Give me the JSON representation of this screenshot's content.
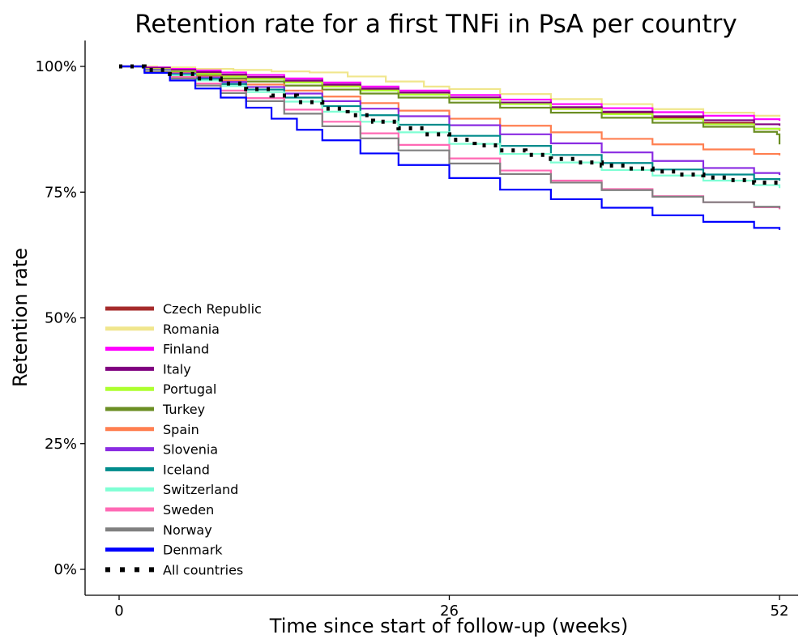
{
  "chart_data": {
    "type": "line",
    "title": "Retention rate for a first TNFi in PsA per country",
    "xlabel": "Time since start of follow-up (weeks)",
    "ylabel": "Retention rate",
    "xlim": [
      0,
      52
    ],
    "ylim": [
      0,
      100
    ],
    "x_ticks": [
      0,
      26,
      52
    ],
    "x_tick_labels": [
      "0",
      "26",
      "52"
    ],
    "y_ticks": [
      0,
      25,
      50,
      75,
      100
    ],
    "y_tick_labels": [
      "0%",
      "25%",
      "50%",
      "75%",
      "100%"
    ],
    "grid": false,
    "legend_position": "bottom-left",
    "step": true,
    "series": [
      {
        "name": "Czech Republic",
        "color": "#a52a2a",
        "style": "solid",
        "x": [
          0,
          2,
          4,
          6,
          8,
          10,
          13,
          16,
          19,
          22,
          26,
          30,
          34,
          38,
          42,
          46,
          50,
          52
        ],
        "y": [
          100,
          99.6,
          99.2,
          98.8,
          98.3,
          97.8,
          97,
          96.3,
          95.5,
          94.8,
          93.8,
          92.8,
          91.8,
          90.8,
          89.8,
          88.8,
          87.6,
          87.2
        ]
      },
      {
        "name": "Romania",
        "color": "#f0e68c",
        "style": "solid",
        "x": [
          0,
          3,
          6,
          9,
          12,
          15,
          18,
          21,
          24,
          26,
          30,
          34,
          38,
          42,
          46,
          50,
          52
        ],
        "y": [
          100,
          99.8,
          99.5,
          99.3,
          99,
          98.8,
          98,
          97,
          96,
          95.5,
          94.5,
          93.5,
          92.5,
          91.5,
          90.8,
          90.2,
          90
        ]
      },
      {
        "name": "Finland",
        "color": "#ff00ff",
        "style": "solid",
        "x": [
          0,
          2,
          4,
          6,
          8,
          10,
          13,
          16,
          19,
          22,
          26,
          30,
          34,
          38,
          42,
          46,
          50,
          52
        ],
        "y": [
          100,
          99.8,
          99.5,
          99.2,
          98.8,
          98.3,
          97.6,
          96.8,
          96,
          95.2,
          94.3,
          93.4,
          92.5,
          91.7,
          90.9,
          90.2,
          89.5,
          89.2
        ]
      },
      {
        "name": "Italy",
        "color": "#800080",
        "style": "solid",
        "x": [
          0,
          2,
          4,
          6,
          8,
          10,
          13,
          16,
          19,
          22,
          26,
          30,
          34,
          38,
          42,
          46,
          50,
          52
        ],
        "y": [
          100,
          99.7,
          99.3,
          98.9,
          98.4,
          97.9,
          97.2,
          96.4,
          95.6,
          94.8,
          93.8,
          92.8,
          91.9,
          91,
          90.1,
          89.3,
          88.5,
          88.2
        ]
      },
      {
        "name": "Portugal",
        "color": "#adff2f",
        "style": "solid",
        "x": [
          0,
          2,
          4,
          6,
          8,
          10,
          13,
          16,
          19,
          22,
          26,
          30,
          34,
          38,
          42,
          46,
          50,
          52
        ],
        "y": [
          100,
          99.5,
          99,
          98.5,
          98,
          97.5,
          96.8,
          96,
          95.2,
          94.4,
          93.5,
          92.5,
          91.5,
          90.5,
          89.5,
          88.5,
          87.6,
          87.3
        ]
      },
      {
        "name": "Turkey",
        "color": "#6b8e23",
        "style": "solid",
        "x": [
          0,
          2,
          4,
          6,
          8,
          10,
          13,
          16,
          19,
          22,
          26,
          30,
          34,
          38,
          42,
          46,
          50,
          51.8,
          52
        ],
        "y": [
          100,
          99.4,
          98.8,
          98.2,
          97.6,
          97,
          96.2,
          95.4,
          94.6,
          93.8,
          92.8,
          91.8,
          90.8,
          89.8,
          88.8,
          88,
          87,
          86.5,
          84.5
        ]
      },
      {
        "name": "Spain",
        "color": "#ff7f50",
        "style": "solid",
        "x": [
          0,
          2,
          4,
          6,
          8,
          10,
          13,
          16,
          19,
          22,
          26,
          30,
          34,
          38,
          42,
          46,
          50,
          52
        ],
        "y": [
          100,
          99.4,
          98.7,
          98,
          97.2,
          96.4,
          95.2,
          94,
          92.7,
          91.2,
          89.6,
          88.2,
          86.9,
          85.6,
          84.5,
          83.5,
          82.6,
          82.3
        ]
      },
      {
        "name": "Slovenia",
        "color": "#8a2be2",
        "style": "solid",
        "x": [
          0,
          2,
          4,
          6,
          8,
          10,
          13,
          16,
          19,
          22,
          26,
          30,
          34,
          38,
          42,
          46,
          50,
          52
        ],
        "y": [
          100,
          99.3,
          98.6,
          97.8,
          96.9,
          95.9,
          94.6,
          93.1,
          91.6,
          90.1,
          88.3,
          86.5,
          84.7,
          82.9,
          81.2,
          79.8,
          78.8,
          78.4
        ]
      },
      {
        "name": "Iceland",
        "color": "#008b8b",
        "style": "solid",
        "x": [
          0,
          2,
          4,
          6,
          8,
          10,
          13,
          16,
          19,
          22,
          26,
          30,
          34,
          38,
          42,
          46,
          50,
          52
        ],
        "y": [
          100,
          99.2,
          98.4,
          97.5,
          96.5,
          95.4,
          93.8,
          92.1,
          90.3,
          88.4,
          86.2,
          84.2,
          82.4,
          80.8,
          79.5,
          78.5,
          77.6,
          77.3
        ]
      },
      {
        "name": "Switzerland",
        "color": "#7fffd4",
        "style": "solid",
        "x": [
          0,
          2,
          4,
          6,
          8,
          10,
          13,
          16,
          19,
          22,
          26,
          30,
          34,
          38,
          42,
          46,
          50,
          52
        ],
        "y": [
          100,
          99.1,
          98.2,
          97.2,
          96.1,
          94.9,
          93,
          91,
          89,
          86.9,
          84.6,
          82.6,
          80.9,
          79.4,
          78.3,
          77.3,
          76.4,
          75.8
        ]
      },
      {
        "name": "Sweden",
        "color": "#ff69b4",
        "style": "solid",
        "x": [
          0,
          2,
          4,
          6,
          8,
          10,
          13,
          16,
          19,
          22,
          26,
          30,
          34,
          38,
          42,
          46,
          50,
          52
        ],
        "y": [
          100,
          99,
          97.9,
          96.6,
          95.2,
          93.7,
          91.4,
          89,
          86.7,
          84.4,
          81.7,
          79.3,
          77.3,
          75.6,
          74.2,
          73,
          72,
          71.6
        ]
      },
      {
        "name": "Norway",
        "color": "#808080",
        "style": "solid",
        "x": [
          0,
          2,
          4,
          6,
          8,
          10,
          13,
          16,
          19,
          22,
          26,
          30,
          34,
          38,
          42,
          46,
          50,
          52
        ],
        "y": [
          100,
          98.9,
          97.6,
          96.2,
          94.7,
          93.1,
          90.6,
          88.1,
          85.7,
          83.3,
          80.7,
          78.6,
          76.9,
          75.4,
          74.1,
          73,
          72.1,
          71.8
        ]
      },
      {
        "name": "Denmark",
        "color": "#0000ff",
        "style": "solid",
        "x": [
          0,
          2,
          4,
          6,
          8,
          10,
          12,
          14,
          16,
          19,
          22,
          26,
          30,
          34,
          38,
          42,
          46,
          50,
          52
        ],
        "y": [
          100,
          98.7,
          97.2,
          95.6,
          93.8,
          91.8,
          89.6,
          87.4,
          85.3,
          82.7,
          80.4,
          77.8,
          75.5,
          73.6,
          71.9,
          70.4,
          69.1,
          67.9,
          67.5
        ]
      },
      {
        "name": "All countries",
        "color": "#000000",
        "style": "dotted",
        "x": [
          0,
          2,
          4,
          6,
          8,
          10,
          12,
          14,
          16,
          18,
          20,
          22,
          24,
          26,
          28,
          30,
          32,
          34,
          36,
          38,
          40,
          42,
          44,
          46,
          48,
          50,
          52
        ],
        "y": [
          100,
          99.3,
          98.5,
          97.6,
          96.6,
          95.5,
          94.2,
          92.9,
          91.6,
          90.3,
          89,
          87.7,
          86.5,
          85.4,
          84.3,
          83.3,
          82.4,
          81.6,
          80.9,
          80.3,
          79.7,
          79.1,
          78.5,
          77.9,
          77.4,
          76.9,
          76.5
        ]
      }
    ]
  }
}
